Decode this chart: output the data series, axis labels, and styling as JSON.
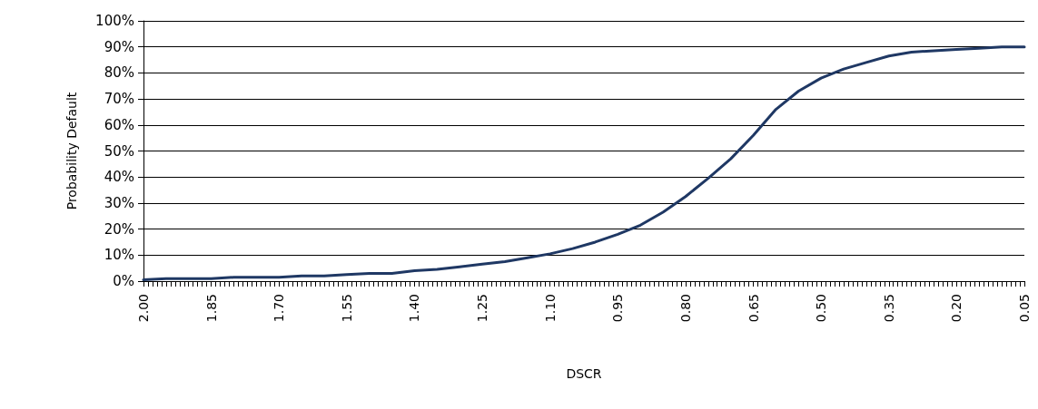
{
  "chart_data": {
    "type": "line",
    "xlabel": "DSCR",
    "ylabel": "Probability Default",
    "x": [
      2.0,
      1.95,
      1.9,
      1.85,
      1.8,
      1.75,
      1.7,
      1.65,
      1.6,
      1.55,
      1.5,
      1.45,
      1.4,
      1.35,
      1.3,
      1.25,
      1.2,
      1.15,
      1.1,
      1.05,
      1.0,
      0.95,
      0.9,
      0.85,
      0.8,
      0.75,
      0.7,
      0.65,
      0.6,
      0.55,
      0.5,
      0.45,
      0.4,
      0.35,
      0.3,
      0.25,
      0.2,
      0.15,
      0.1,
      0.05
    ],
    "series": [
      {
        "color": "#1f3864",
        "values": [
          0.5,
          1,
          1,
          1,
          1.5,
          1.5,
          1.5,
          2,
          2,
          2.5,
          3,
          3,
          4,
          4.5,
          5.5,
          6.5,
          7.5,
          9,
          10.5,
          12.5,
          15,
          18,
          21.5,
          26.5,
          32.5,
          39.5,
          47,
          56,
          66,
          73,
          78,
          81.5,
          84,
          86.5,
          88,
          88.5,
          89,
          89.5,
          90,
          90
        ]
      }
    ],
    "xlim": [
      2.0,
      0.05
    ],
    "xticks": [
      {
        "value": 2.0,
        "label": "2.00"
      },
      {
        "value": 1.85,
        "label": "1.85"
      },
      {
        "value": 1.7,
        "label": "1.70"
      },
      {
        "value": 1.55,
        "label": "1.55"
      },
      {
        "value": 1.4,
        "label": "1.40"
      },
      {
        "value": 1.25,
        "label": "1.25"
      },
      {
        "value": 1.1,
        "label": "1.10"
      },
      {
        "value": 0.95,
        "label": "0.95"
      },
      {
        "value": 0.8,
        "label": "0.80"
      },
      {
        "value": 0.65,
        "label": "0.65"
      },
      {
        "value": 0.5,
        "label": "0.50"
      },
      {
        "value": 0.35,
        "label": "0.35"
      },
      {
        "value": 0.2,
        "label": "0.20"
      },
      {
        "value": 0.05,
        "label": "0.05"
      }
    ],
    "ylim": [
      0,
      100
    ],
    "yticks": [
      {
        "value": 0,
        "label": "0%"
      },
      {
        "value": 10,
        "label": "10%"
      },
      {
        "value": 20,
        "label": "20%"
      },
      {
        "value": 30,
        "label": "30%"
      },
      {
        "value": 40,
        "label": "40%"
      },
      {
        "value": 50,
        "label": "50%"
      },
      {
        "value": 60,
        "label": "60%"
      },
      {
        "value": 70,
        "label": "70%"
      },
      {
        "value": 80,
        "label": "80%"
      },
      {
        "value": 90,
        "label": "90%"
      },
      {
        "value": 100,
        "label": "100%"
      }
    ],
    "grid": "y",
    "marker": "none",
    "line_style": "solid"
  }
}
